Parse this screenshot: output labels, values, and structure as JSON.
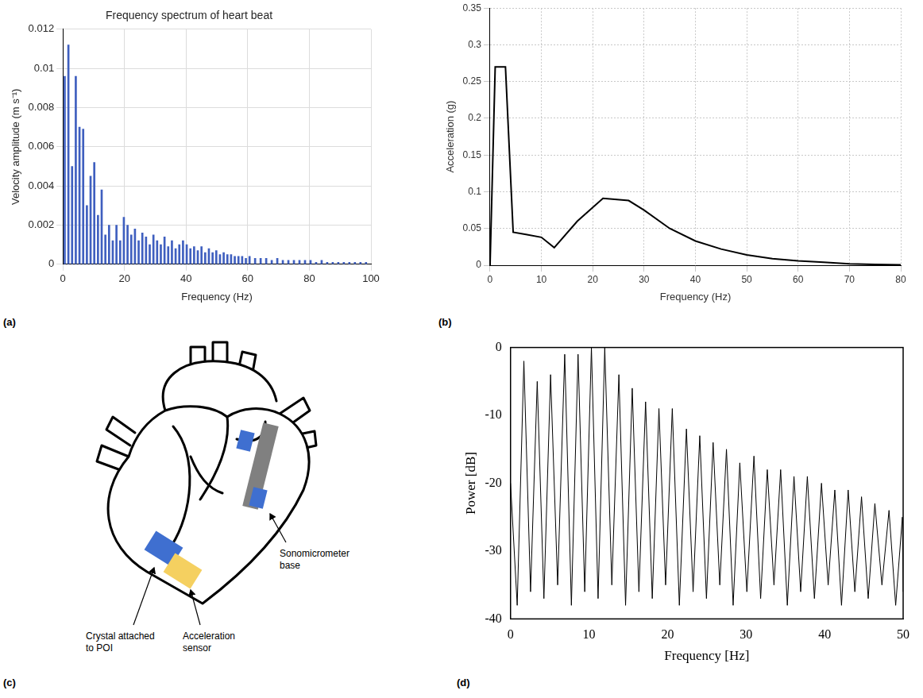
{
  "chart_data": [
    {
      "panel": "(a)",
      "type": "bar",
      "title": "Frequency spectrum of heart beat",
      "x_label": "Frequency (Hz)",
      "y_label": "Velocity amplitude (m s⁻¹)",
      "x": [
        0.6,
        1.8,
        3.0,
        4.2,
        5.4,
        6.6,
        7.8,
        9.0,
        10.2,
        11.4,
        12.6,
        13.8,
        15.0,
        16.2,
        17.4,
        18.6,
        19.8,
        21.0,
        22.2,
        23.4,
        24.6,
        25.8,
        27.0,
        28.2,
        29.4,
        30.6,
        31.8,
        33.0,
        34.2,
        35.4,
        36.6,
        37.8,
        39.0,
        40.2,
        41.4,
        42.6,
        43.8,
        45.0,
        46.2,
        47.4,
        48.6,
        49.8,
        51.0,
        52.2,
        53.4,
        54.6,
        55.8,
        57.0,
        58.2,
        59.4,
        60.6,
        62.4,
        64.2,
        66.0,
        67.8,
        69.6,
        71.4,
        73.2,
        75.0,
        76.8,
        78.6,
        80.4,
        82.2,
        84.0,
        85.8,
        87.6,
        89.4,
        91.2,
        93.0,
        94.8,
        96.6,
        98.4
      ],
      "values": [
        0.0096,
        0.0112,
        0.005,
        0.0096,
        0.007,
        0.0069,
        0.003,
        0.0045,
        0.0052,
        0.0025,
        0.0038,
        0.0015,
        0.002,
        0.0012,
        0.002,
        0.0012,
        0.0024,
        0.002,
        0.0015,
        0.0018,
        0.0012,
        0.0016,
        0.0014,
        0.001,
        0.0015,
        0.0012,
        0.001,
        0.0014,
        0.0009,
        0.0012,
        0.0008,
        0.001,
        0.0012,
        0.001,
        0.0008,
        0.0009,
        0.0007,
        0.0009,
        0.0006,
        0.0008,
        0.0006,
        0.0007,
        0.0005,
        0.0006,
        0.0005,
        0.0005,
        0.0004,
        0.0004,
        0.0004,
        0.0003,
        0.0004,
        0.0003,
        0.0003,
        0.0003,
        0.0002,
        0.0003,
        0.0002,
        0.0002,
        0.0002,
        0.0002,
        0.0002,
        0.0002,
        0.0001,
        0.0002,
        0.0001,
        0.0001,
        0.0001,
        0.0001,
        0.0001,
        0.0001,
        0.0001,
        0.0001
      ],
      "color": "#3f5fbf",
      "xlim": [
        0,
        100
      ],
      "xticks": [
        0,
        20,
        40,
        60,
        80,
        100
      ],
      "ylim": [
        0,
        0.012
      ],
      "yticks": [
        0,
        0.002,
        0.004,
        0.006,
        0.008,
        0.01,
        0.012
      ],
      "grid": true
    },
    {
      "panel": "(b)",
      "type": "line",
      "x_label": "Frequency (Hz)",
      "y_label": "Acceleration (g)",
      "x": [
        0,
        1,
        3,
        4.5,
        7,
        10,
        12.5,
        17,
        22,
        27,
        30,
        35,
        40,
        45,
        50,
        55,
        60,
        65,
        70,
        75,
        80
      ],
      "values": [
        0,
        0.27,
        0.27,
        0.045,
        0.042,
        0.038,
        0.024,
        0.06,
        0.091,
        0.088,
        0.075,
        0.05,
        0.033,
        0.022,
        0.014,
        0.009,
        0.006,
        0.004,
        0.002,
        0.001,
        0.0005
      ],
      "color": "#000000",
      "xlim": [
        0,
        80
      ],
      "xticks": [
        0,
        10,
        20,
        30,
        40,
        50,
        60,
        70,
        80
      ],
      "ylim": [
        0,
        0.35
      ],
      "yticks": [
        0,
        0.05,
        0.1,
        0.15,
        0.2,
        0.25,
        0.3,
        0.35
      ],
      "grid": true
    },
    {
      "panel": "(d)",
      "type": "line",
      "x_label": "Frequency [Hz]",
      "y_label": "Power [dB]",
      "x": [
        0,
        0.85,
        1.7,
        2.55,
        3.4,
        4.25,
        5.1,
        6.0,
        6.9,
        7.75,
        8.6,
        9.45,
        10.3,
        11.15,
        12.0,
        12.9,
        13.8,
        14.65,
        15.5,
        16.35,
        17.2,
        18.05,
        18.9,
        19.75,
        20.6,
        21.5,
        22.4,
        23.25,
        24.1,
        24.95,
        25.8,
        26.65,
        27.5,
        28.35,
        29.2,
        30.1,
        31.0,
        31.85,
        32.7,
        33.55,
        34.4,
        35.25,
        36.1,
        36.95,
        37.8,
        38.7,
        39.6,
        40.45,
        41.3,
        42.15,
        43.0,
        43.85,
        44.7,
        45.55,
        46.4,
        47.3,
        48.2,
        49.05,
        49.9,
        50
      ],
      "values": [
        -20,
        -38,
        -2,
        -36,
        -5,
        -37,
        -4,
        -35,
        -1,
        -38,
        -1,
        -36,
        0,
        -37,
        0,
        -35,
        -4,
        -38,
        -6,
        -36,
        -8,
        -37,
        -9,
        -35,
        -9,
        -38,
        -12,
        -36,
        -13,
        -37,
        -14,
        -35,
        -15,
        -38,
        -17,
        -36,
        -16,
        -37,
        -18,
        -35,
        -18,
        -38,
        -19,
        -36,
        -19,
        -37,
        -20,
        -35,
        -21,
        -38,
        -21,
        -36,
        -22,
        -37,
        -23,
        -35,
        -24,
        -38,
        -25,
        -36
      ],
      "color": "#000000",
      "xlim": [
        0,
        50
      ],
      "xticks": [
        0,
        10,
        20,
        30,
        40,
        50
      ],
      "ylim": [
        -40,
        0
      ],
      "yticks": [
        -40,
        -30,
        -20,
        -10,
        0
      ],
      "grid": false
    }
  ],
  "diagram": {
    "panel": "(c)",
    "labels": {
      "crystal": [
        "Crystal attached",
        "to POI"
      ],
      "sensor": [
        "Acceleration",
        "sensor"
      ],
      "base": [
        "Sonomicrometer",
        "base"
      ]
    }
  }
}
